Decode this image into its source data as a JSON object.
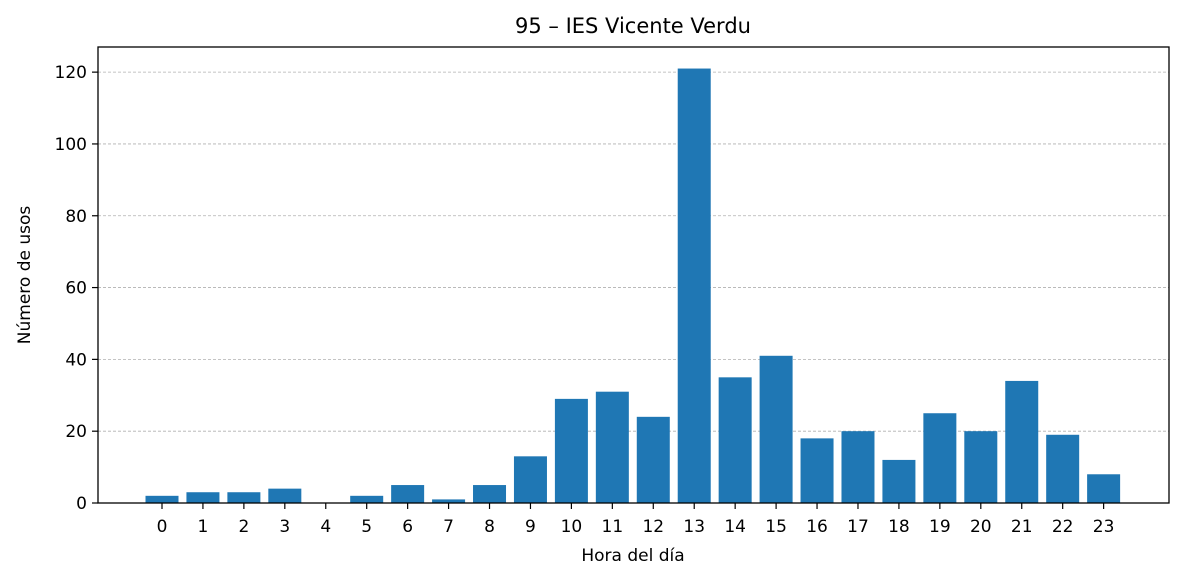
{
  "chart_data": {
    "type": "bar",
    "title": "95 – IES Vicente Verdu",
    "xlabel": "Hora del día",
    "ylabel": "Número de usos",
    "categories": [
      "0",
      "1",
      "2",
      "3",
      "4",
      "5",
      "6",
      "7",
      "8",
      "9",
      "10",
      "11",
      "12",
      "13",
      "14",
      "15",
      "16",
      "17",
      "18",
      "19",
      "20",
      "21",
      "22",
      "23"
    ],
    "values": [
      2,
      3,
      3,
      4,
      0,
      2,
      5,
      1,
      5,
      13,
      29,
      31,
      24,
      121,
      35,
      41,
      18,
      20,
      12,
      25,
      20,
      34,
      19,
      8
    ],
    "ylim": [
      0,
      127
    ],
    "yticks": [
      0,
      20,
      40,
      60,
      80,
      100,
      120
    ],
    "grid": "horizontal dashed",
    "bar_color": "#1f77b4"
  }
}
